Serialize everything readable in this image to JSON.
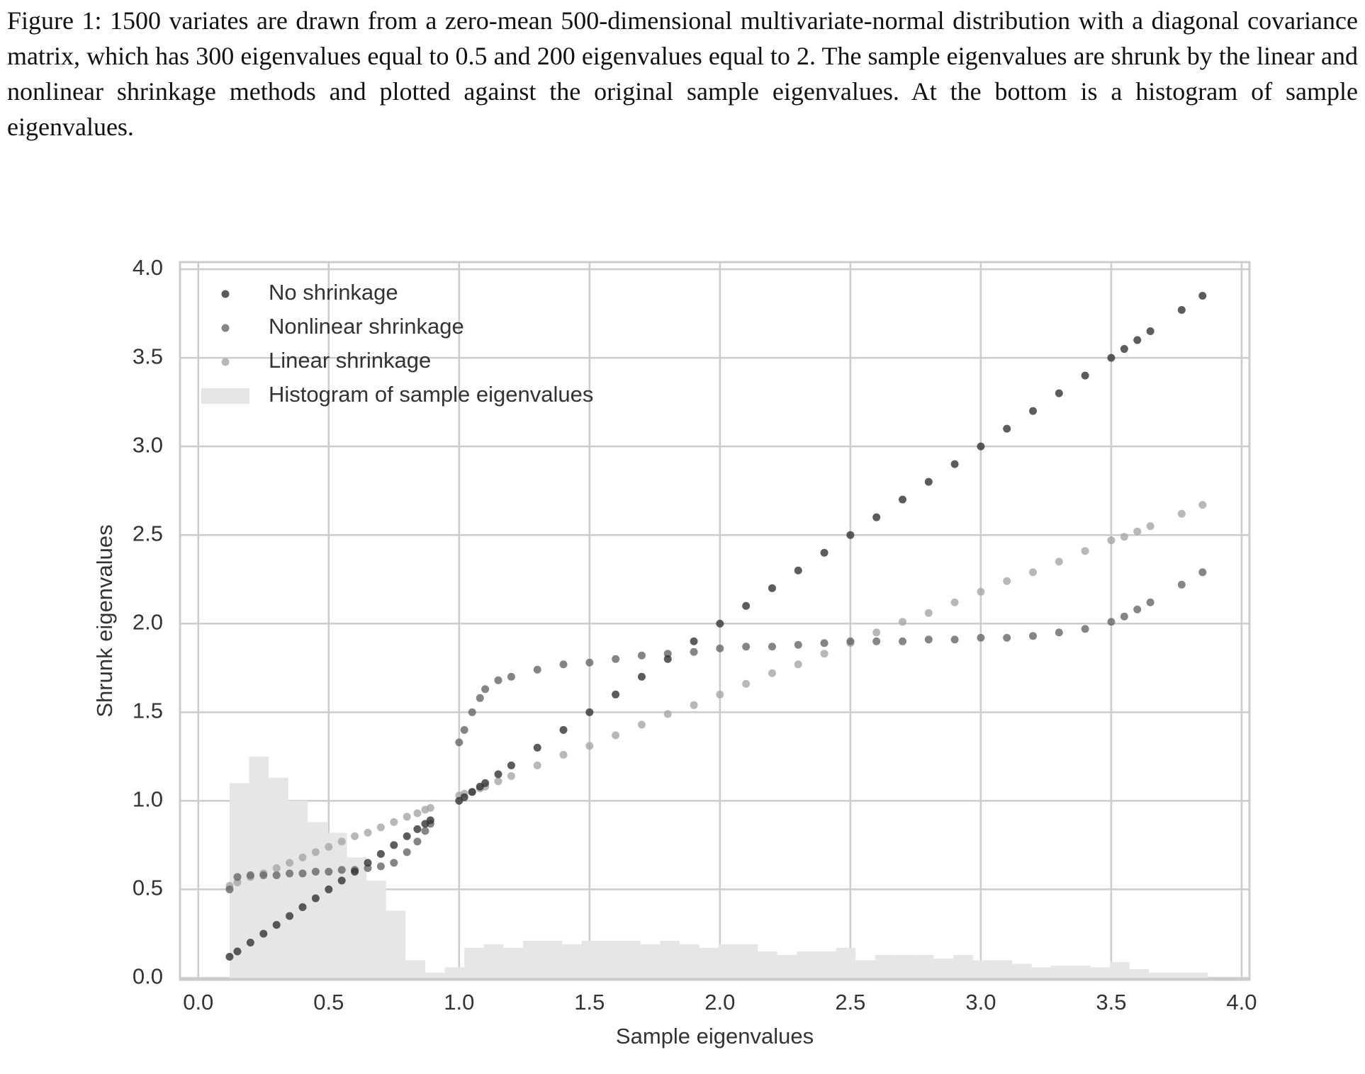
{
  "caption": "Figure 1: 1500 variates are drawn from a zero-mean 500-dimensional multivariate-normal distribution with a diagonal covariance matrix, which has 300 eigenvalues equal to 0.5 and 200 eigenvalues equal to 2. The sample eigenvalues are shrunk by the linear and nonlinear shrinkage methods and plotted against the original sample eigenvalues. At the bottom is a histogram of sample eigenvalues.",
  "chart_data": {
    "type": "scatter",
    "xlabel": "Sample eigenvalues",
    "ylabel": "Shrunk eigenvalues",
    "xlim": [
      -0.07,
      4.03
    ],
    "ylim": [
      -0.01,
      4.04
    ],
    "xticks": [
      {
        "value": 0,
        "label": "0.0"
      },
      0.5,
      {
        "value": 1,
        "label": "1.0"
      },
      1.5,
      {
        "value": 2,
        "label": "2.0"
      },
      2.5,
      {
        "value": 3,
        "label": "3.0"
      },
      3.5,
      {
        "value": 4,
        "label": "4.0"
      }
    ],
    "yticks": [
      {
        "value": 0,
        "label": "0.0"
      },
      0.5,
      {
        "value": 1,
        "label": "1.0"
      },
      1.5,
      {
        "value": 2,
        "label": "2.0"
      },
      2.5,
      {
        "value": 3,
        "label": "3.0"
      },
      3.5,
      {
        "value": 4,
        "label": "4.0"
      }
    ],
    "grid": true,
    "legend": "upper left",
    "x": [
      0.12,
      0.15,
      0.2,
      0.25,
      0.3,
      0.35,
      0.4,
      0.45,
      0.5,
      0.55,
      0.6,
      0.65,
      0.7,
      0.75,
      0.8,
      0.84,
      0.87,
      0.89,
      1.0,
      1.02,
      1.05,
      1.08,
      1.1,
      1.15,
      1.2,
      1.3,
      1.4,
      1.5,
      1.6,
      1.7,
      1.8,
      1.9,
      2.0,
      2.1,
      2.2,
      2.3,
      2.4,
      2.5,
      2.6,
      2.7,
      2.8,
      2.9,
      3.0,
      3.1,
      3.2,
      3.3,
      3.4,
      3.5,
      3.55,
      3.6,
      3.65,
      3.77,
      3.85
    ],
    "series": [
      {
        "name": "No shrinkage",
        "color": "#333333",
        "values": [
          0.12,
          0.15,
          0.2,
          0.25,
          0.3,
          0.35,
          0.4,
          0.45,
          0.5,
          0.55,
          0.6,
          0.65,
          0.7,
          0.75,
          0.8,
          0.84,
          0.87,
          0.89,
          1.0,
          1.02,
          1.05,
          1.08,
          1.1,
          1.15,
          1.2,
          1.3,
          1.4,
          1.5,
          1.6,
          1.7,
          1.8,
          1.9,
          2.0,
          2.1,
          2.2,
          2.3,
          2.4,
          2.5,
          2.6,
          2.7,
          2.8,
          2.9,
          3.0,
          3.1,
          3.2,
          3.3,
          3.4,
          3.5,
          3.55,
          3.6,
          3.65,
          3.77,
          3.85
        ]
      },
      {
        "name": "Nonlinear shrinkage",
        "color": "#666666",
        "values": [
          0.5,
          0.57,
          0.58,
          0.58,
          0.58,
          0.59,
          0.59,
          0.6,
          0.6,
          0.61,
          0.61,
          0.62,
          0.63,
          0.65,
          0.71,
          0.77,
          0.83,
          0.87,
          1.33,
          1.4,
          1.5,
          1.58,
          1.63,
          1.68,
          1.7,
          1.74,
          1.77,
          1.78,
          1.8,
          1.82,
          1.83,
          1.84,
          1.86,
          1.87,
          1.87,
          1.88,
          1.89,
          1.9,
          1.9,
          1.9,
          1.91,
          1.91,
          1.92,
          1.92,
          1.93,
          1.95,
          1.97,
          2.01,
          2.04,
          2.08,
          2.12,
          2.22,
          2.29
        ]
      },
      {
        "name": "Linear shrinkage",
        "color": "#a6a6a6",
        "values": [
          0.52,
          0.54,
          0.57,
          0.59,
          0.62,
          0.65,
          0.68,
          0.71,
          0.74,
          0.77,
          0.8,
          0.82,
          0.85,
          0.88,
          0.91,
          0.93,
          0.95,
          0.96,
          1.03,
          1.04,
          1.05,
          1.07,
          1.08,
          1.11,
          1.14,
          1.2,
          1.26,
          1.31,
          1.37,
          1.43,
          1.49,
          1.54,
          1.6,
          1.66,
          1.72,
          1.77,
          1.83,
          1.89,
          1.95,
          2.01,
          2.06,
          2.12,
          2.18,
          2.24,
          2.29,
          2.35,
          2.41,
          2.47,
          2.49,
          2.52,
          2.55,
          2.62,
          2.67
        ]
      }
    ],
    "histogram": {
      "name": "Histogram of sample eigenvalues",
      "color": "#e6e6e6",
      "bins": [
        0.12,
        0.195,
        0.27,
        0.345,
        0.42,
        0.495,
        0.57,
        0.645,
        0.72,
        0.795,
        0.87,
        0.945,
        1.02,
        1.095,
        1.17,
        1.245,
        1.32,
        1.395,
        1.47,
        1.545,
        1.62,
        1.695,
        1.77,
        1.845,
        1.92,
        1.995,
        2.07,
        2.145,
        2.22,
        2.295,
        2.37,
        2.445,
        2.52,
        2.595,
        2.67,
        2.745,
        2.82,
        2.895,
        2.97,
        3.045,
        3.12,
        3.195,
        3.27,
        3.345,
        3.42,
        3.495,
        3.57,
        3.645,
        3.72,
        3.795,
        3.87
      ],
      "counts": [
        1.1,
        1.25,
        1.13,
        1.0,
        0.88,
        0.82,
        0.68,
        0.55,
        0.38,
        0.1,
        0.03,
        0.06,
        0.17,
        0.19,
        0.17,
        0.21,
        0.21,
        0.19,
        0.21,
        0.21,
        0.21,
        0.19,
        0.21,
        0.19,
        0.17,
        0.19,
        0.19,
        0.15,
        0.13,
        0.15,
        0.15,
        0.17,
        0.1,
        0.13,
        0.13,
        0.13,
        0.11,
        0.13,
        0.1,
        0.1,
        0.08,
        0.06,
        0.07,
        0.07,
        0.06,
        0.09,
        0.05,
        0.03,
        0.03,
        0.03
      ]
    }
  }
}
